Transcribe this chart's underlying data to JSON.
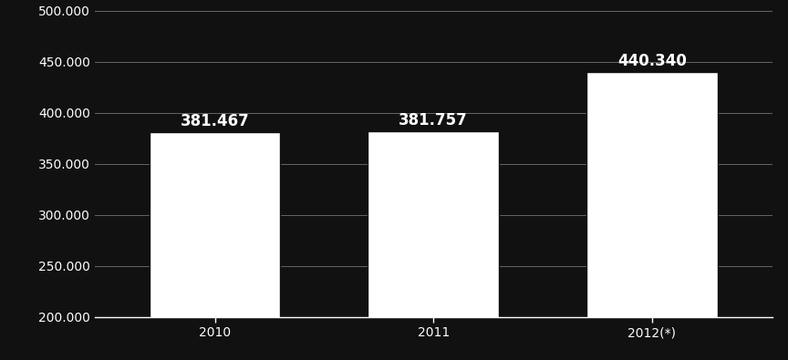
{
  "categories": [
    "2010",
    "2011",
    "2012(*)"
  ],
  "values": [
    381467,
    381757,
    440340
  ],
  "bar_labels": [
    "381.467",
    "381.757",
    "440.340"
  ],
  "bar_color": "#ffffff",
  "background_color": "#111111",
  "text_color": "#ffffff",
  "grid_color": "#666666",
  "ylim": [
    200000,
    500000
  ],
  "yticks": [
    200000,
    250000,
    300000,
    350000,
    400000,
    450000,
    500000
  ],
  "ytick_labels": [
    "200.000",
    "250.000",
    "300.000",
    "350.000",
    "400.000",
    "450.000",
    "500.000"
  ],
  "label_fontsize": 12,
  "tick_fontsize": 10,
  "bar_width": 0.6
}
